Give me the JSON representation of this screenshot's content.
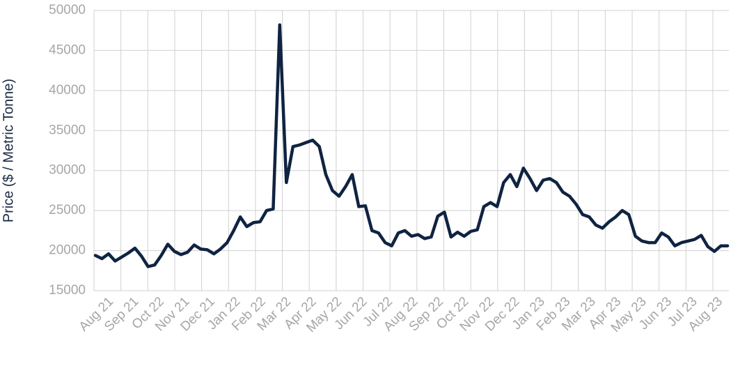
{
  "chart_data": {
    "type": "line",
    "ylabel": "Price ($ / Metric Tonne)",
    "categories": [
      "Aug 21",
      null,
      null,
      null,
      "Sep 21",
      null,
      null,
      null,
      "Oct 22",
      null,
      null,
      null,
      "Nov 21",
      null,
      null,
      null,
      "Dec 21",
      null,
      null,
      null,
      "Jan 22",
      null,
      null,
      null,
      "Feb 22",
      null,
      null,
      null,
      "Mar 22",
      null,
      null,
      null,
      "Apr 22",
      null,
      null,
      null,
      "May 22",
      null,
      null,
      null,
      "Jun 22",
      null,
      null,
      null,
      "Jul 22",
      null,
      null,
      null,
      "Aug 22",
      null,
      null,
      null,
      "Sep 22",
      null,
      null,
      null,
      "Oct 22",
      null,
      null,
      null,
      "Nov 22",
      null,
      null,
      null,
      "Dec 22",
      null,
      null,
      null,
      "Jan 23",
      null,
      null,
      null,
      "Feb 23",
      null,
      null,
      null,
      "Mar 23",
      null,
      null,
      null,
      "Apr 23",
      null,
      null,
      null,
      "May 23",
      null,
      null,
      null,
      "Jun 23",
      null,
      null,
      null,
      "Jul 23",
      null,
      null,
      null,
      "Aug 23"
    ],
    "values": [
      19400,
      19000,
      19600,
      18700,
      19200,
      19700,
      20300,
      19300,
      18000,
      18200,
      19400,
      20800,
      19900,
      19500,
      19800,
      20700,
      20200,
      20100,
      19600,
      20200,
      21000,
      22500,
      24200,
      23000,
      23500,
      23600,
      25000,
      25200,
      48200,
      28500,
      33000,
      33200,
      33500,
      33800,
      33000,
      29500,
      27500,
      26800,
      28000,
      29500,
      25500,
      25600,
      22500,
      22200,
      21000,
      20600,
      22200,
      22500,
      21800,
      22000,
      21500,
      21700,
      24300,
      24800,
      21700,
      22300,
      21800,
      22400,
      22600,
      25500,
      26000,
      25500,
      28500,
      29500,
      28000,
      30300,
      29000,
      27500,
      28800,
      29000,
      28500,
      27300,
      26800,
      25800,
      24500,
      24200,
      23200,
      22800,
      23600,
      24200,
      25000,
      24500,
      21800,
      21200,
      21000,
      21000,
      22200,
      21700,
      20600,
      21000,
      21200,
      21400,
      21900,
      20500,
      19900,
      20600,
      20600
    ],
    "color": "#0f2342",
    "ylim": [
      15000,
      50000
    ],
    "yticks": [
      15000,
      20000,
      25000,
      30000,
      35000,
      40000,
      45000,
      50000
    ],
    "grid": true
  }
}
